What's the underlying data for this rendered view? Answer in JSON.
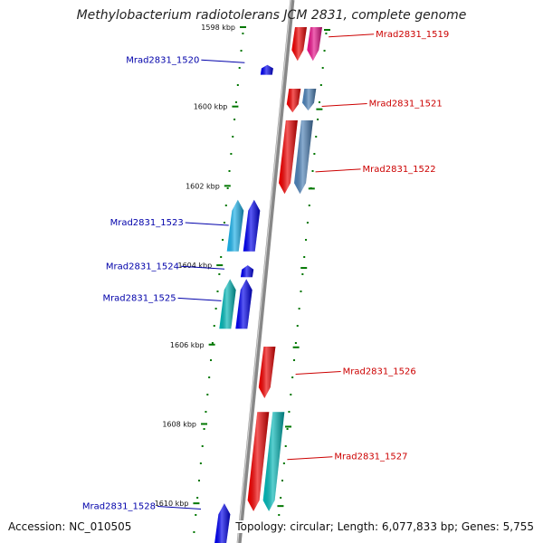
{
  "title": "Methylobacterium radiotolerans JCM 2831, complete genome",
  "footer": {
    "accession": "Accession: NC_010505",
    "topology": "Topology: circular; Length: 6,077,833 bp; Genes: 5,755"
  },
  "colors": {
    "forward_label": "#cc0000",
    "reverse_label": "#0000aa",
    "backbone": "#888888",
    "tick": "#007700"
  },
  "ticks": [
    {
      "label": "1598 kbp",
      "kbp": 1598
    },
    {
      "label": "1600 kbp",
      "kbp": 1600
    },
    {
      "label": "1602 kbp",
      "kbp": 1602
    },
    {
      "label": "1604 kbp",
      "kbp": 1604
    },
    {
      "label": "1606 kbp",
      "kbp": 1606
    },
    {
      "label": "1608 kbp",
      "kbp": 1608
    },
    {
      "label": "1610 kbp",
      "kbp": 1610
    }
  ],
  "genes": [
    {
      "name": "Mrad2831_1519",
      "strand": "+",
      "start_kbp": 1598.0,
      "end_kbp": 1598.85,
      "color": "#ee0000"
    },
    {
      "name": "Mrad2831_1519",
      "strand": "+",
      "start_kbp": 1598.0,
      "end_kbp": 1598.85,
      "color": "#e8128a",
      "track": 2
    },
    {
      "name": "Mrad2831_1520",
      "strand": "-",
      "start_kbp": 1598.95,
      "end_kbp": 1599.2,
      "color": "#0000ee"
    },
    {
      "name": "Mrad2831_1521",
      "strand": "+",
      "start_kbp": 1599.55,
      "end_kbp": 1600.15,
      "color": "#ee0000"
    },
    {
      "name": "Mrad2831_1521",
      "strand": "+",
      "start_kbp": 1599.55,
      "end_kbp": 1600.1,
      "color": "#4a7fb5",
      "track": 2
    },
    {
      "name": "Mrad2831_1522",
      "strand": "+",
      "start_kbp": 1600.35,
      "end_kbp": 1602.2,
      "color": "#ee0000"
    },
    {
      "name": "Mrad2831_1522",
      "strand": "+",
      "start_kbp": 1600.35,
      "end_kbp": 1602.2,
      "color": "#4a7fb5",
      "track": 2
    },
    {
      "name": "Mrad2831_1523",
      "strand": "-",
      "start_kbp": 1602.35,
      "end_kbp": 1603.65,
      "color": "#0000ee"
    },
    {
      "name": "Mrad2831_1523",
      "strand": "-",
      "start_kbp": 1602.35,
      "end_kbp": 1603.65,
      "color": "#1ab0e8",
      "track": 2
    },
    {
      "name": "Mrad2831_1524",
      "strand": "-",
      "start_kbp": 1604.0,
      "end_kbp": 1604.3,
      "color": "#0000ee"
    },
    {
      "name": "Mrad2831_1525",
      "strand": "-",
      "start_kbp": 1604.35,
      "end_kbp": 1605.6,
      "color": "#0000ee"
    },
    {
      "name": "Mrad2831_1525",
      "strand": "-",
      "start_kbp": 1604.35,
      "end_kbp": 1605.6,
      "color": "#00b5b5",
      "track": 2
    },
    {
      "name": "Mrad2831_1526",
      "strand": "+",
      "start_kbp": 1606.05,
      "end_kbp": 1607.35,
      "color": "#ee0000"
    },
    {
      "name": "Mrad2831_1527",
      "strand": "+",
      "start_kbp": 1607.7,
      "end_kbp": 1610.2,
      "color": "#ee0000"
    },
    {
      "name": "Mrad2831_1527",
      "strand": "+",
      "start_kbp": 1607.7,
      "end_kbp": 1610.2,
      "color": "#00b5b5",
      "track": 2
    },
    {
      "name": "Mrad2831_1528",
      "strand": "-",
      "start_kbp": 1610.0,
      "end_kbp": 1611.0,
      "color": "#0000ee"
    }
  ],
  "gene_labels": [
    {
      "name": "Mrad2831_1519",
      "strand": "+",
      "kbp": 1598.2
    },
    {
      "name": "Mrad2831_1520",
      "strand": "-",
      "kbp": 1598.85
    },
    {
      "name": "Mrad2831_1521",
      "strand": "+",
      "kbp": 1599.95
    },
    {
      "name": "Mrad2831_1522",
      "strand": "+",
      "kbp": 1601.6
    },
    {
      "name": "Mrad2831_1523",
      "strand": "-",
      "kbp": 1602.95
    },
    {
      "name": "Mrad2831_1524",
      "strand": "-",
      "kbp": 1604.05
    },
    {
      "name": "Mrad2831_1525",
      "strand": "-",
      "kbp": 1604.85
    },
    {
      "name": "Mrad2831_1526",
      "strand": "+",
      "kbp": 1606.7
    },
    {
      "name": "Mrad2831_1527",
      "strand": "+",
      "kbp": 1608.85
    },
    {
      "name": "Mrad2831_1528",
      "strand": "-",
      "kbp": 1610.1
    }
  ]
}
